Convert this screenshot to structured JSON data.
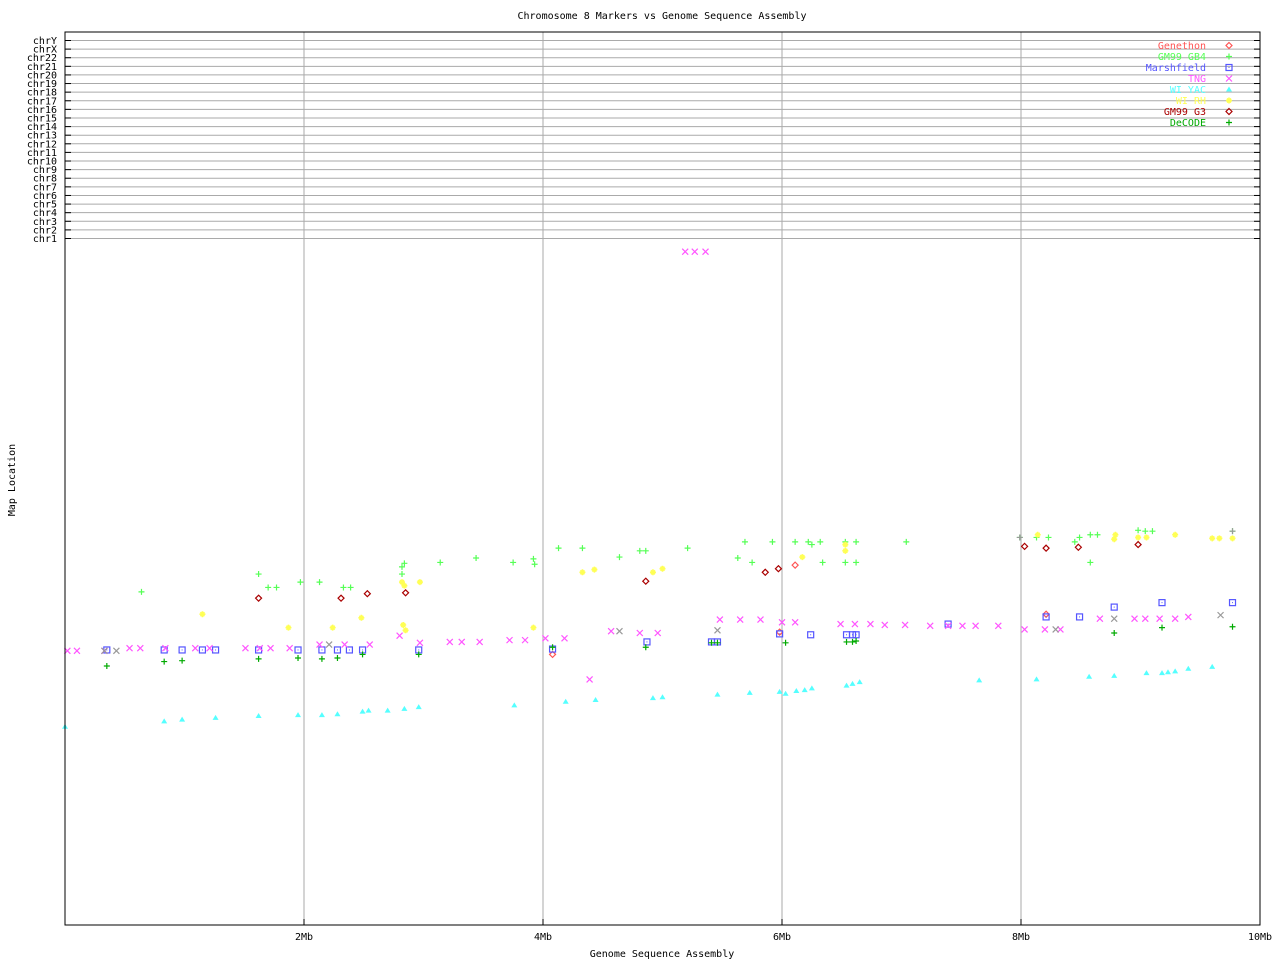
{
  "chart_data": {
    "type": "scatter",
    "title": "Chromosome 8 Markers vs Genome Sequence Assembly",
    "xlabel": "Genome Sequence Assembly",
    "ylabel": "Map Location",
    "xlim": [
      0,
      10
    ],
    "ylim": [
      0,
      100
    ],
    "x_ticks": [
      {
        "value": 2,
        "label": "2Mb"
      },
      {
        "value": 4,
        "label": "4Mb"
      },
      {
        "value": 6,
        "label": "6Mb"
      },
      {
        "value": 8,
        "label": "8Mb"
      },
      {
        "value": 10,
        "label": "10Mb"
      }
    ],
    "y_tick_labels": [
      "chrY",
      "chrX",
      "chr22",
      "chr21",
      "chr20",
      "chr19",
      "chr18",
      "chr17",
      "chr16",
      "chr15",
      "chr14",
      "chr13",
      "chr12",
      "chr11",
      "chr10",
      "chr9",
      "chr8",
      "chr7",
      "chr6",
      "chr5",
      "chr4",
      "chr3",
      "chr2",
      "chr1"
    ],
    "grid": true,
    "legend_position": "top-right",
    "series": [
      {
        "name": "Genethon",
        "color": "#ff5555",
        "marker": "diamond",
        "points": [
          [
            4.08,
            30.3
          ],
          [
            6.11,
            40.3
          ],
          [
            5.98,
            32.8
          ],
          [
            8.21,
            34.8
          ]
        ]
      },
      {
        "name": "GM99 GB4",
        "color": "#55ff55",
        "marker": "plus",
        "points": [
          [
            0.64,
            37.3
          ],
          [
            1.62,
            39.3
          ],
          [
            1.7,
            37.8
          ],
          [
            1.77,
            37.8
          ],
          [
            1.97,
            38.4
          ],
          [
            2.13,
            38.4
          ],
          [
            2.33,
            37.8
          ],
          [
            2.39,
            37.8
          ],
          [
            2.82,
            40.1
          ],
          [
            2.84,
            40.5
          ],
          [
            2.82,
            39.3
          ],
          [
            3.14,
            40.6
          ],
          [
            3.44,
            41.1
          ],
          [
            3.75,
            40.6
          ],
          [
            3.92,
            41.0
          ],
          [
            3.93,
            40.4
          ],
          [
            4.13,
            42.2
          ],
          [
            4.33,
            42.2
          ],
          [
            4.64,
            41.2
          ],
          [
            4.81,
            41.9
          ],
          [
            4.86,
            41.9
          ],
          [
            5.21,
            42.2
          ],
          [
            5.63,
            41.1
          ],
          [
            5.69,
            42.9
          ],
          [
            5.75,
            40.6
          ],
          [
            5.92,
            42.9
          ],
          [
            6.11,
            42.9
          ],
          [
            6.22,
            42.9
          ],
          [
            6.25,
            42.6
          ],
          [
            6.32,
            42.9
          ],
          [
            6.34,
            40.6
          ],
          [
            6.53,
            42.9
          ],
          [
            6.62,
            42.9
          ],
          [
            6.53,
            40.6
          ],
          [
            6.62,
            40.6
          ],
          [
            7.04,
            42.9
          ],
          [
            7.99,
            43.4
          ],
          [
            8.13,
            43.4
          ],
          [
            8.23,
            43.4
          ],
          [
            8.45,
            42.9
          ],
          [
            8.49,
            43.4
          ],
          [
            8.58,
            40.6
          ],
          [
            8.58,
            43.7
          ],
          [
            8.64,
            43.7
          ],
          [
            8.98,
            44.2
          ],
          [
            9.04,
            44.1
          ],
          [
            9.1,
            44.1
          ],
          [
            9.77,
            44.1
          ]
        ]
      },
      {
        "name": "Marshfield",
        "color": "#5555ff",
        "marker": "square",
        "points": [
          [
            0.35,
            30.8
          ],
          [
            0.83,
            30.8
          ],
          [
            0.98,
            30.8
          ],
          [
            1.15,
            30.8
          ],
          [
            1.26,
            30.8
          ],
          [
            1.62,
            30.8
          ],
          [
            1.95,
            30.8
          ],
          [
            2.15,
            30.8
          ],
          [
            2.28,
            30.8
          ],
          [
            2.38,
            30.8
          ],
          [
            2.49,
            30.8
          ],
          [
            2.96,
            30.8
          ],
          [
            4.08,
            30.9
          ],
          [
            4.87,
            31.7
          ],
          [
            5.41,
            31.7
          ],
          [
            5.46,
            31.7
          ],
          [
            5.98,
            32.6
          ],
          [
            6.24,
            32.5
          ],
          [
            6.54,
            32.5
          ],
          [
            6.59,
            32.5
          ],
          [
            6.62,
            32.5
          ],
          [
            7.39,
            33.7
          ],
          [
            8.21,
            34.5
          ],
          [
            8.49,
            34.5
          ],
          [
            8.78,
            35.6
          ],
          [
            9.18,
            36.1
          ],
          [
            9.77,
            36.1
          ]
        ]
      },
      {
        "name": "TNG",
        "color": "#ff55ff",
        "marker": "cross",
        "points": [
          [
            0.02,
            30.7
          ],
          [
            0.1,
            30.7
          ],
          [
            0.33,
            30.7
          ],
          [
            0.54,
            31.0
          ],
          [
            0.63,
            31.0
          ],
          [
            0.84,
            31.0
          ],
          [
            1.09,
            31.0
          ],
          [
            1.21,
            31.0
          ],
          [
            1.51,
            31.0
          ],
          [
            1.63,
            31.0
          ],
          [
            1.72,
            31.0
          ],
          [
            1.88,
            31.0
          ],
          [
            2.13,
            31.4
          ],
          [
            2.34,
            31.4
          ],
          [
            2.55,
            31.4
          ],
          [
            2.8,
            32.4
          ],
          [
            2.97,
            31.6
          ],
          [
            3.22,
            31.7
          ],
          [
            3.32,
            31.7
          ],
          [
            3.47,
            31.7
          ],
          [
            3.72,
            31.9
          ],
          [
            3.85,
            31.9
          ],
          [
            4.02,
            32.1
          ],
          [
            4.18,
            32.1
          ],
          [
            4.39,
            27.5
          ],
          [
            4.57,
            32.9
          ],
          [
            4.81,
            32.7
          ],
          [
            4.96,
            32.7
          ],
          [
            5.48,
            34.2
          ],
          [
            5.65,
            34.2
          ],
          [
            5.82,
            34.2
          ],
          [
            6.0,
            33.9
          ],
          [
            6.11,
            33.9
          ],
          [
            6.49,
            33.7
          ],
          [
            6.61,
            33.7
          ],
          [
            6.74,
            33.7
          ],
          [
            6.86,
            33.6
          ],
          [
            7.03,
            33.6
          ],
          [
            7.24,
            33.5
          ],
          [
            7.39,
            33.5
          ],
          [
            7.51,
            33.5
          ],
          [
            7.62,
            33.5
          ],
          [
            7.81,
            33.5
          ],
          [
            8.03,
            33.1
          ],
          [
            8.2,
            33.1
          ],
          [
            8.33,
            33.1
          ],
          [
            8.66,
            34.3
          ],
          [
            8.95,
            34.3
          ],
          [
            9.04,
            34.3
          ],
          [
            9.16,
            34.3
          ],
          [
            9.29,
            34.3
          ],
          [
            9.4,
            34.5
          ],
          [
            5.19,
            75.4
          ],
          [
            5.27,
            75.4
          ],
          [
            5.36,
            75.4
          ]
        ]
      },
      {
        "name": "WI YAC",
        "color": "#55ffff",
        "marker": "triangle",
        "points": [
          [
            0.0,
            22.2
          ],
          [
            0.83,
            22.8
          ],
          [
            0.98,
            23.0
          ],
          [
            1.26,
            23.2
          ],
          [
            1.62,
            23.4
          ],
          [
            1.95,
            23.5
          ],
          [
            2.15,
            23.5
          ],
          [
            2.28,
            23.6
          ],
          [
            2.49,
            23.9
          ],
          [
            2.54,
            24.0
          ],
          [
            2.7,
            24.0
          ],
          [
            2.84,
            24.2
          ],
          [
            2.96,
            24.4
          ],
          [
            3.76,
            24.6
          ],
          [
            4.19,
            25.0
          ],
          [
            4.44,
            25.2
          ],
          [
            4.92,
            25.4
          ],
          [
            5.0,
            25.5
          ],
          [
            5.46,
            25.8
          ],
          [
            5.73,
            26.0
          ],
          [
            5.98,
            26.1
          ],
          [
            6.03,
            25.9
          ],
          [
            6.12,
            26.2
          ],
          [
            6.19,
            26.3
          ],
          [
            6.25,
            26.5
          ],
          [
            6.54,
            26.8
          ],
          [
            6.59,
            27.0
          ],
          [
            6.65,
            27.2
          ],
          [
            7.65,
            27.4
          ],
          [
            8.13,
            27.5
          ],
          [
            8.57,
            27.8
          ],
          [
            8.78,
            27.9
          ],
          [
            9.05,
            28.2
          ],
          [
            9.18,
            28.2
          ],
          [
            9.23,
            28.3
          ],
          [
            9.29,
            28.4
          ],
          [
            9.4,
            28.7
          ],
          [
            9.6,
            28.9
          ]
        ]
      },
      {
        "name": "WI RH",
        "color": "#ffff55",
        "marker": "star",
        "points": [
          [
            1.15,
            34.8
          ],
          [
            1.87,
            33.3
          ],
          [
            2.24,
            33.3
          ],
          [
            2.48,
            34.4
          ],
          [
            2.82,
            38.4
          ],
          [
            2.84,
            38.0
          ],
          [
            2.97,
            38.4
          ],
          [
            2.83,
            33.6
          ],
          [
            2.85,
            33.0
          ],
          [
            3.92,
            33.3
          ],
          [
            4.33,
            39.5
          ],
          [
            4.43,
            39.8
          ],
          [
            4.92,
            39.5
          ],
          [
            5.0,
            39.9
          ],
          [
            6.17,
            41.2
          ],
          [
            6.53,
            41.9
          ],
          [
            6.53,
            42.6
          ],
          [
            8.14,
            43.7
          ],
          [
            8.78,
            43.2
          ],
          [
            8.79,
            43.7
          ],
          [
            8.98,
            43.4
          ],
          [
            9.05,
            43.4
          ],
          [
            9.29,
            43.7
          ],
          [
            9.6,
            43.3
          ],
          [
            9.66,
            43.3
          ],
          [
            9.77,
            43.3
          ]
        ]
      },
      {
        "name": "GM99 G3",
        "color": "#aa0000",
        "marker": "diamond",
        "points": [
          [
            1.62,
            36.6
          ],
          [
            2.31,
            36.6
          ],
          [
            2.53,
            37.1
          ],
          [
            2.85,
            37.2
          ],
          [
            4.86,
            38.5
          ],
          [
            5.86,
            39.5
          ],
          [
            5.97,
            39.9
          ],
          [
            8.03,
            42.4
          ],
          [
            8.21,
            42.2
          ],
          [
            8.48,
            42.3
          ],
          [
            8.98,
            42.6
          ]
        ]
      },
      {
        "name": "DeCODE",
        "color": "#00aa00",
        "marker": "plus",
        "points": [
          [
            0.35,
            29.0
          ],
          [
            0.83,
            29.5
          ],
          [
            0.98,
            29.6
          ],
          [
            1.62,
            29.8
          ],
          [
            1.95,
            29.9
          ],
          [
            2.15,
            29.8
          ],
          [
            2.28,
            29.9
          ],
          [
            2.49,
            30.3
          ],
          [
            2.96,
            30.3
          ],
          [
            4.08,
            31.1
          ],
          [
            4.86,
            31.1
          ],
          [
            5.41,
            31.6
          ],
          [
            5.46,
            31.6
          ],
          [
            6.03,
            31.6
          ],
          [
            6.54,
            31.7
          ],
          [
            6.59,
            31.7
          ],
          [
            6.62,
            31.8
          ],
          [
            8.78,
            32.7
          ],
          [
            9.18,
            33.3
          ],
          [
            9.77,
            33.4
          ]
        ]
      },
      {
        "color": "#999999",
        "marker": "cross",
        "in_legend": false,
        "points": [
          [
            0.33,
            30.7
          ],
          [
            0.43,
            30.7
          ],
          [
            2.21,
            31.4
          ],
          [
            4.64,
            32.9
          ],
          [
            5.46,
            33.0
          ],
          [
            8.29,
            33.1
          ],
          [
            8.78,
            34.3
          ],
          [
            9.67,
            34.7
          ]
        ]
      },
      {
        "color": "#999999",
        "marker": "plus",
        "in_legend": false,
        "points": [
          [
            7.99,
            43.4
          ],
          [
            9.77,
            44.1
          ]
        ]
      }
    ]
  }
}
